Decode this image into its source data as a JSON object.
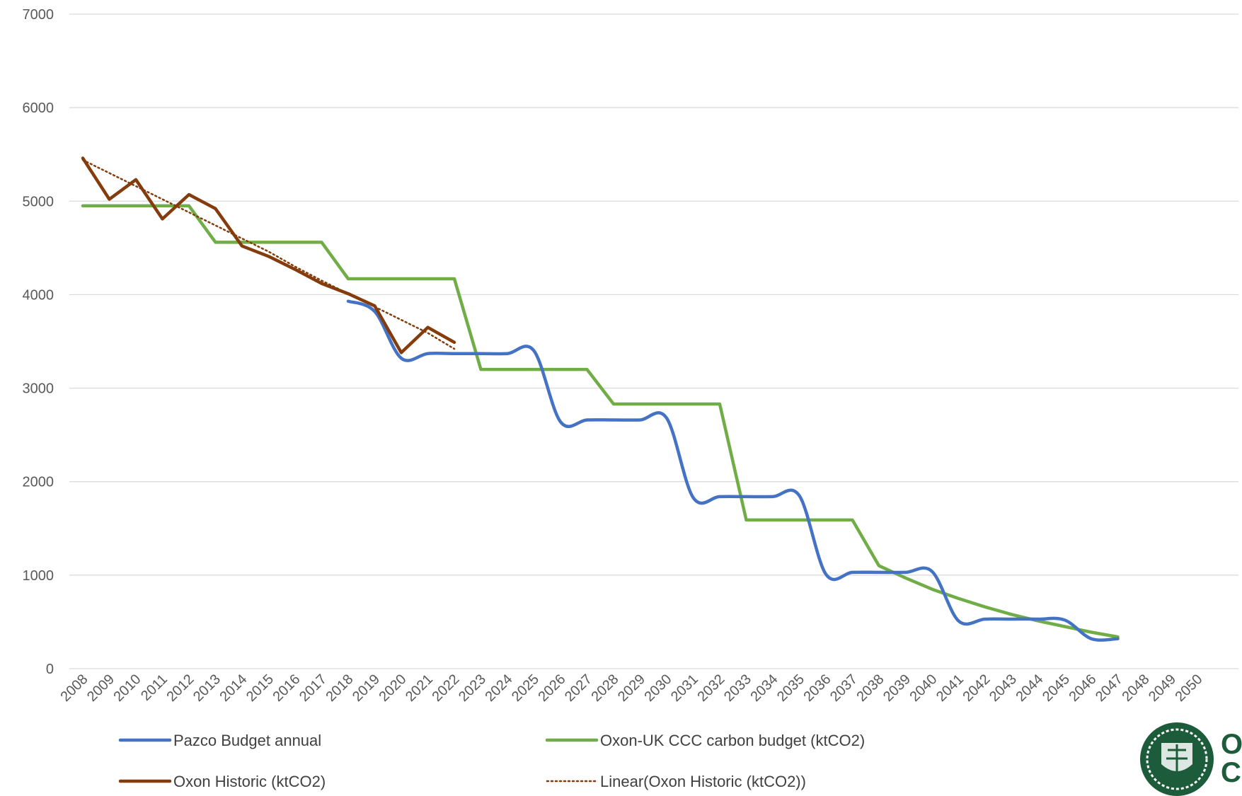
{
  "chart_data": {
    "type": "line",
    "title": "",
    "xlabel": "",
    "ylabel": "",
    "x": [
      2008,
      2009,
      2010,
      2011,
      2012,
      2013,
      2014,
      2015,
      2016,
      2017,
      2018,
      2019,
      2020,
      2021,
      2022,
      2023,
      2024,
      2025,
      2026,
      2027,
      2028,
      2029,
      2030,
      2031,
      2032,
      2033,
      2034,
      2035,
      2036,
      2037,
      2038,
      2039,
      2040,
      2041,
      2042,
      2043,
      2044,
      2045,
      2046,
      2047,
      2048,
      2049,
      2050
    ],
    "ylim": [
      0,
      7000
    ],
    "yticks": [
      0,
      1000,
      2000,
      3000,
      4000,
      5000,
      6000,
      7000
    ],
    "grid": "horizontal",
    "legend_position": "bottom",
    "series": [
      {
        "name": "Pazco Budget annual",
        "color": "#4472c4",
        "style": "smooth",
        "values": [
          null,
          null,
          null,
          null,
          null,
          null,
          null,
          null,
          null,
          null,
          3930,
          3820,
          3320,
          3370,
          3370,
          3370,
          3370,
          3400,
          2640,
          2660,
          2660,
          2660,
          2680,
          1830,
          1840,
          1840,
          1840,
          1850,
          1010,
          1030,
          1030,
          1030,
          1040,
          510,
          530,
          530,
          530,
          520,
          320,
          320,
          null,
          null,
          null
        ]
      },
      {
        "name": "Oxon-UK CCC carbon budget (ktCO2)",
        "color": "#70ad47",
        "style": "straight",
        "values": [
          4950,
          4950,
          4950,
          4950,
          4950,
          4560,
          4560,
          4560,
          4560,
          4560,
          4170,
          4170,
          4170,
          4170,
          4170,
          3200,
          3200,
          3200,
          3200,
          3200,
          2830,
          2830,
          2830,
          2830,
          2830,
          1590,
          1590,
          1590,
          1590,
          1590,
          1100,
          970,
          850,
          750,
          660,
          580,
          510,
          450,
          390,
          340,
          null,
          null,
          null
        ]
      },
      {
        "name": "Oxon Historic (ktCO2)",
        "color": "#843c0c",
        "style": "straight",
        "values": [
          5460,
          5020,
          5230,
          4810,
          5070,
          4920,
          4520,
          4410,
          4270,
          4120,
          4010,
          3880,
          3380,
          3650,
          3490,
          null,
          null,
          null,
          null,
          null,
          null,
          null,
          null,
          null,
          null,
          null,
          null,
          null,
          null,
          null,
          null,
          null,
          null,
          null,
          null,
          null,
          null,
          null,
          null,
          null,
          null,
          null,
          null
        ]
      },
      {
        "name": "Linear(Oxon Historic (ktCO2))",
        "color": "#843c0c",
        "style": "dotted",
        "values": [
          5440,
          5300,
          5160,
          5020,
          4880,
          4740,
          4600,
          4460,
          4300,
          4150,
          4010,
          3870,
          3730,
          3590,
          3420,
          null,
          null,
          null,
          null,
          null,
          null,
          null,
          null,
          null,
          null,
          null,
          null,
          null,
          null,
          null,
          null,
          null,
          null,
          null,
          null,
          null,
          null,
          null,
          null,
          null,
          null,
          null,
          null
        ]
      }
    ]
  },
  "logo": {
    "name": "seal",
    "text_line1": "O",
    "text_line2": "Co"
  }
}
